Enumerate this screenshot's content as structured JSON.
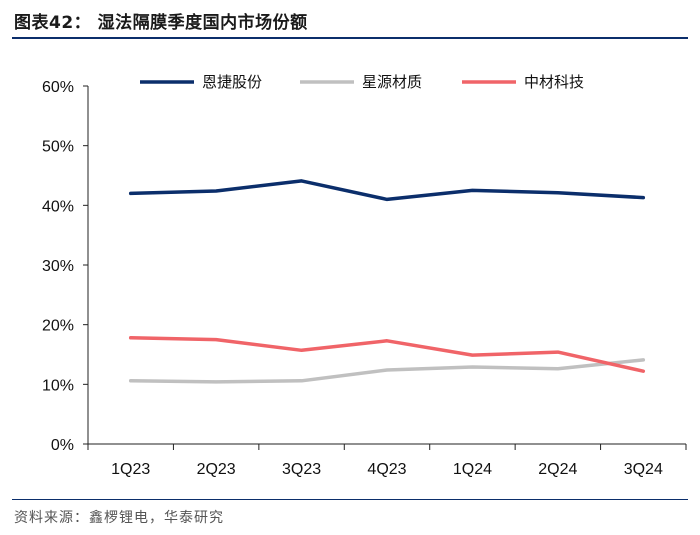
{
  "figure_title": "图表42：  湿法隔膜季度国内市场份额",
  "source": "资料来源：鑫椤锂电，华泰研究",
  "chart_data": {
    "type": "line",
    "categories": [
      "1Q23",
      "2Q23",
      "3Q23",
      "4Q23",
      "1Q24",
      "2Q24",
      "3Q24"
    ],
    "series": [
      {
        "name": "恩捷股份",
        "color": "#0b2e6b",
        "values": [
          42.0,
          42.4,
          44.1,
          41.0,
          42.5,
          42.1,
          41.3
        ]
      },
      {
        "name": "星源材质",
        "color": "#c0c0c0",
        "values": [
          10.6,
          10.4,
          10.6,
          12.4,
          12.9,
          12.6,
          14.1
        ]
      },
      {
        "name": "中材科技",
        "color": "#f06468",
        "values": [
          17.8,
          17.5,
          15.7,
          17.3,
          14.9,
          15.4,
          12.2
        ]
      }
    ],
    "ylim": [
      0,
      60
    ],
    "yticks": [
      "0%",
      "10%",
      "20%",
      "30%",
      "40%",
      "50%",
      "60%"
    ],
    "legend_position": "top",
    "grid": false
  }
}
